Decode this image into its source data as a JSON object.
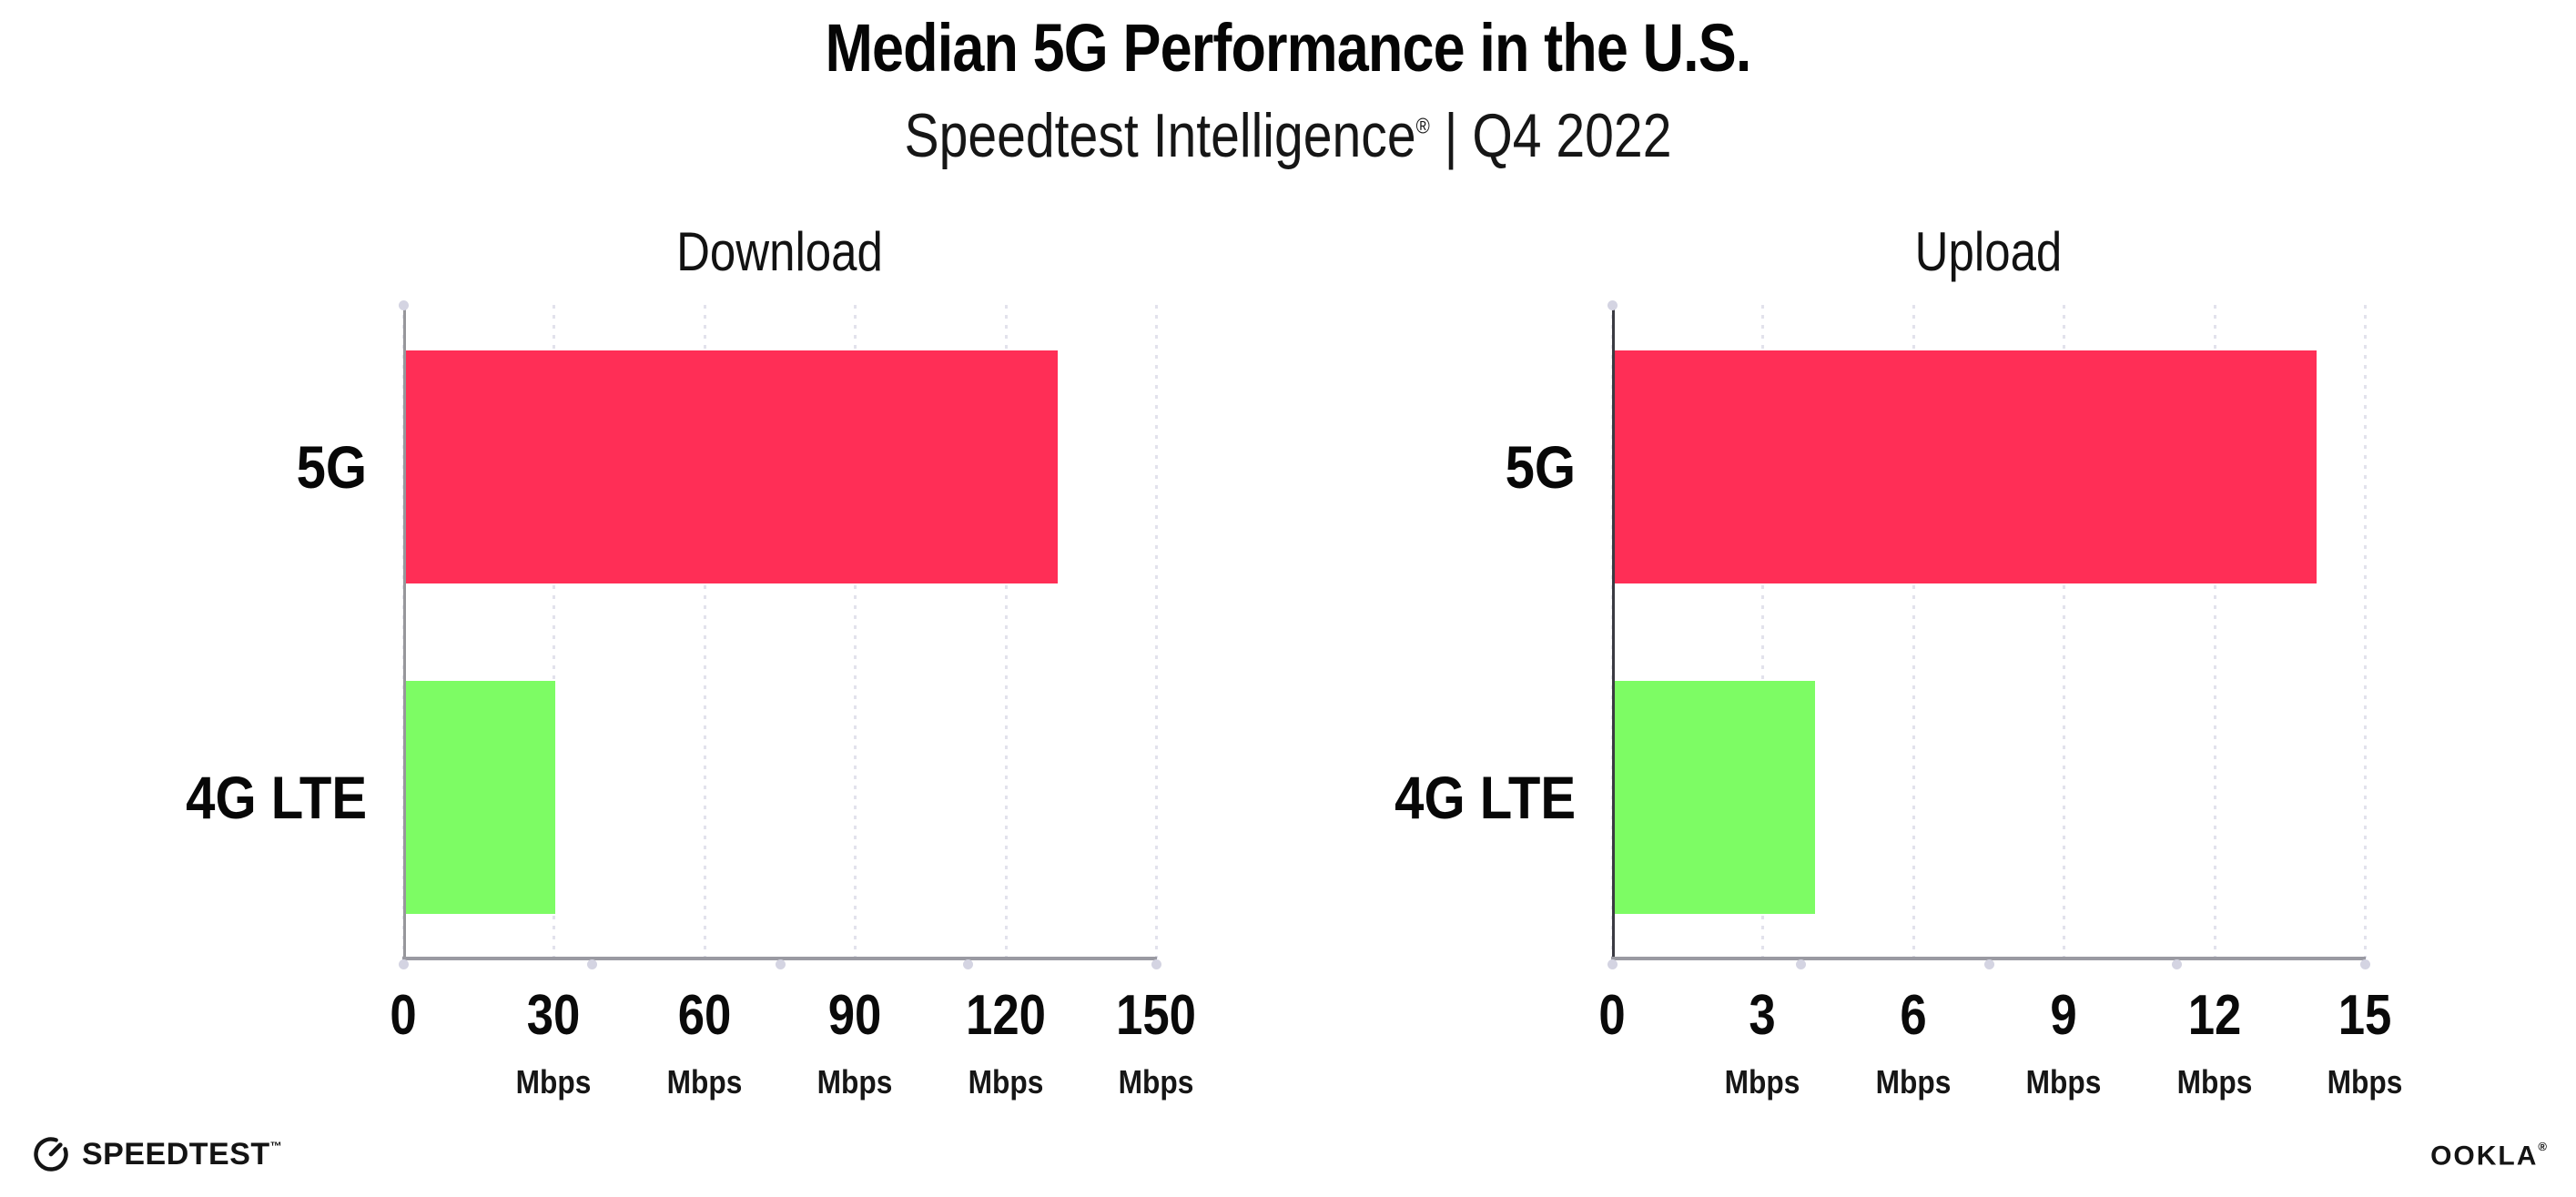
{
  "title": "Median 5G Performance in the U.S.",
  "subtitle": {
    "brand": "Speedtest Intelligence",
    "reg": "®",
    "rest": " | Q4 2022"
  },
  "footer": {
    "speedtest": "SPEEDTEST",
    "speedtest_mark": "™",
    "speedtest_icon": "gauge-icon",
    "ookla": "OOKLA",
    "ookla_mark": "®"
  },
  "colors": {
    "bar_5g": "#FF2E56",
    "bar_4g": "#7DFC64",
    "grid_dot": "#E2E2EC",
    "axis_left_download": "#97979B",
    "axis_left_upload": "#3A3A42",
    "axis_bottom": "#9A9AA2",
    "axis_marker_dot": "#D4D4E2",
    "text": "#0C0C0C"
  },
  "chart_data": [
    {
      "type": "bar",
      "orientation": "horizontal",
      "title": "Download",
      "categories": [
        "5G",
        "4G LTE"
      ],
      "values": [
        130,
        30
      ],
      "unit": "Mbps",
      "xlim": [
        0,
        150
      ],
      "xticks": [
        0,
        30,
        60,
        90,
        120,
        150
      ],
      "bar_colors": [
        "#FF2E56",
        "#7DFC64"
      ],
      "grid": "dotted-vertical",
      "legend": "none"
    },
    {
      "type": "bar",
      "orientation": "horizontal",
      "title": "Upload",
      "categories": [
        "5G",
        "4G LTE"
      ],
      "values": [
        14,
        4
      ],
      "unit": "Mbps",
      "xlim": [
        0,
        15
      ],
      "xticks": [
        0,
        3,
        6,
        9,
        12,
        15
      ],
      "bar_colors": [
        "#FF2E56",
        "#7DFC64"
      ],
      "grid": "dotted-vertical",
      "legend": "none"
    }
  ]
}
